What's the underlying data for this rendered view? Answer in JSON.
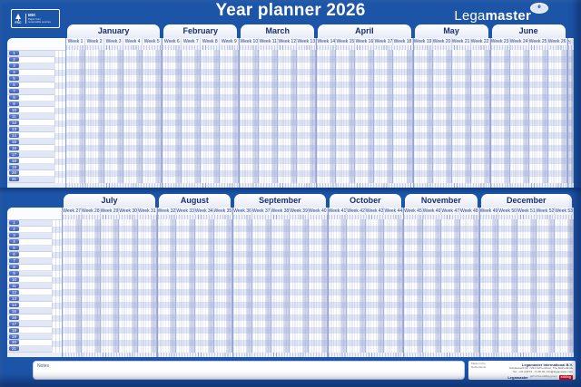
{
  "title": "Year planner 2026",
  "brand": {
    "light": "Lega",
    "bold": "master",
    "badge": "e"
  },
  "fsc": {
    "org": "FSC",
    "mix": "MIX",
    "line1": "Paper from",
    "line2": "responsible sources"
  },
  "week_prefix": "Week ",
  "halves": [
    {
      "months": [
        {
          "name": "January",
          "weeks": [
            1,
            2,
            3,
            4,
            5
          ]
        },
        {
          "name": "February",
          "weeks": [
            6,
            7,
            8,
            9
          ]
        },
        {
          "name": "March",
          "weeks": [
            10,
            11,
            12,
            13
          ]
        },
        {
          "name": "April",
          "weeks": [
            14,
            15,
            16,
            17,
            18
          ]
        },
        {
          "name": "May",
          "weeks": [
            19,
            20,
            21,
            22
          ]
        },
        {
          "name": "June",
          "weeks": [
            23,
            24,
            25,
            26
          ]
        }
      ],
      "sliver_week": "27",
      "row_numbers": [
        1,
        2,
        3,
        4,
        5,
        6,
        7,
        8,
        9,
        10,
        11,
        12,
        13,
        14,
        15,
        16,
        17,
        18,
        19,
        20,
        21
      ]
    },
    {
      "months": [
        {
          "name": "July",
          "weeks": [
            27,
            28,
            29,
            30,
            31
          ]
        },
        {
          "name": "August",
          "weeks": [
            32,
            33,
            34,
            35
          ]
        },
        {
          "name": "September",
          "weeks": [
            36,
            37,
            38,
            39,
            40
          ]
        },
        {
          "name": "October",
          "weeks": [
            41,
            42,
            43,
            44
          ]
        },
        {
          "name": "November",
          "weeks": [
            45,
            46,
            47,
            48
          ]
        },
        {
          "name": "December",
          "weeks": [
            49,
            50,
            51,
            52,
            53
          ]
        }
      ],
      "sliver_week": null,
      "row_numbers": [
        1,
        2,
        3,
        4,
        5,
        6,
        7,
        8,
        9,
        10,
        11,
        12,
        13,
        14,
        15,
        16,
        17,
        18,
        19,
        20,
        21
      ]
    }
  ],
  "notes_label": "Notes",
  "footer": {
    "made_in": "Made in the Netherlands",
    "company": "Legamaster International B.V.",
    "address": "Kwinkweerd 62, 7241 CW Lochem, The Netherlands",
    "tel": "Tel.: +31 (0)573 - 71 30 00, info@legamaster.com",
    "brand_small": "Legamaster",
    "edding": "edding",
    "edding_sub": "part of the edding group"
  },
  "colors": {
    "page_bg": "#1c54a8",
    "divider_dark": "#0f3c85",
    "tab_text": "#1b2f6e",
    "weekend_shade": "#8f9bcd",
    "row_alt": "#e2e7f5",
    "edding_red": "#e30613"
  }
}
